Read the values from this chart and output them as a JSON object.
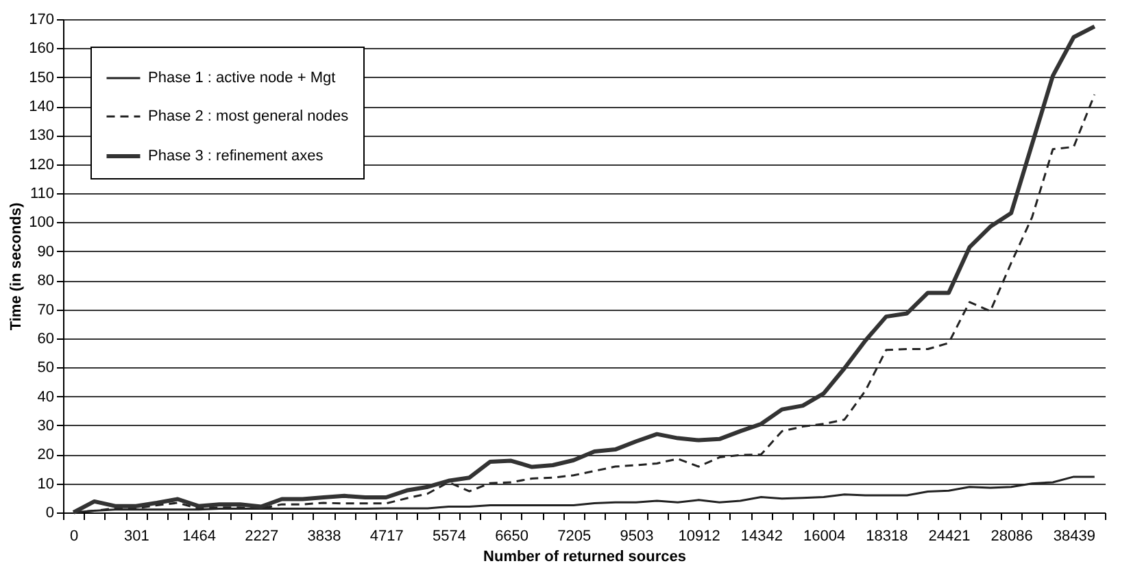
{
  "chart_data": {
    "type": "line",
    "xlabel": "Number of returned sources",
    "ylabel": "Time (in seconds)",
    "categories": [
      "0",
      null,
      null,
      "301",
      null,
      null,
      "1464",
      null,
      null,
      "2227",
      null,
      null,
      "3838",
      null,
      null,
      "4717",
      null,
      null,
      "5574",
      null,
      null,
      "6650",
      null,
      null,
      "7205",
      null,
      null,
      "9503",
      null,
      null,
      "10912",
      null,
      null,
      "14342",
      null,
      null,
      "16004",
      null,
      null,
      "18318",
      null,
      null,
      "24421",
      null,
      null,
      "28086",
      null,
      null,
      "38439",
      null
    ],
    "series": [
      {
        "name": "Phase 1 : active node + Mgt",
        "color": "#222222",
        "line_style": "solid",
        "values": [
          0,
          0.6,
          1,
          1,
          1,
          1,
          1,
          1.3,
          1.3,
          1.3,
          1.3,
          1.3,
          1.3,
          1.3,
          1.3,
          1.4,
          1.4,
          1.4,
          2,
          2,
          2.5,
          2.5,
          2.5,
          2.5,
          2.5,
          3.2,
          3.5,
          3.5,
          4,
          3.5,
          4.3,
          3.5,
          4,
          5.3,
          4.8,
          5,
          5.3,
          6.2,
          5.9,
          5.9,
          5.9,
          7.2,
          7.5,
          8.8,
          8.5,
          8.8,
          10,
          10.4,
          12.3,
          12.3
        ]
      },
      {
        "name": "Phase 2 : most general nodes",
        "color": "#222222",
        "line_style": "dashed",
        "values": [
          0,
          0.6,
          1.4,
          1.4,
          2.5,
          3.3,
          1.4,
          1.7,
          1.7,
          1.4,
          2.8,
          2.8,
          3.3,
          3.1,
          3.1,
          3.1,
          4.9,
          6.5,
          10.4,
          7.3,
          10.1,
          10.4,
          11.7,
          12,
          12.8,
          14.3,
          15.8,
          16.3,
          16.9,
          18.5,
          15.8,
          19,
          19.8,
          20,
          28,
          29.6,
          30.5,
          32,
          41.9,
          56,
          56.3,
          56.3,
          58.4,
          72.5,
          69.4,
          86,
          101.7,
          125.2,
          126,
          144
        ]
      },
      {
        "name": "Phase 3 : refinement axes",
        "color": "#333333",
        "line_style": "solid",
        "values": [
          0,
          3.8,
          2.2,
          2.2,
          3.3,
          4.6,
          2.2,
          2.8,
          2.8,
          2,
          4.6,
          4.6,
          5.2,
          5.7,
          5.2,
          5.2,
          7.6,
          8.8,
          10.9,
          12,
          17.5,
          17.8,
          15.7,
          16.3,
          18,
          21,
          21.7,
          24.5,
          27,
          25.6,
          24.9,
          25.3,
          28,
          30.5,
          35.5,
          36.8,
          41,
          49.7,
          59.2,
          67.5,
          68.6,
          75.7,
          75.7,
          91.4,
          98.5,
          103.2,
          126.9,
          150.5,
          163.8,
          167.5
        ]
      }
    ],
    "ylim": [
      0,
      170
    ],
    "yticks": [
      0,
      10,
      20,
      30,
      40,
      50,
      60,
      70,
      80,
      90,
      100,
      110,
      120,
      130,
      140,
      150,
      160,
      170
    ],
    "grid": "y",
    "legend": "top left",
    "marker": "none"
  }
}
